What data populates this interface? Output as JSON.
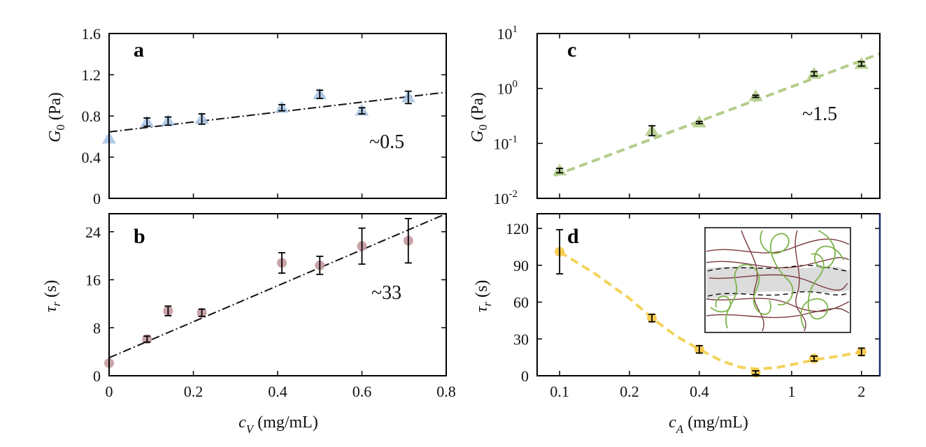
{
  "colors": {
    "a": "#a9c4e4",
    "b": "#c49a9f",
    "c": "#b3cd8a",
    "d": "#f5c842",
    "d_line": "#f3d35a",
    "c_line": "#b3cd8a",
    "fit": "#111111",
    "right_axis": "#1c2a6b",
    "inset_band": "#dcdcdc",
    "inset_red": "#7a3a3e",
    "inset_green": "#7db34a"
  },
  "chart_data": [
    {
      "id": "a",
      "panel_label": "a",
      "type": "scatter",
      "marker": "triangle",
      "xlim": [
        0,
        0.8
      ],
      "ylim": [
        0,
        1.6
      ],
      "yticks": [
        "0",
        "0.4",
        "0.8",
        "1.2",
        "1.6"
      ],
      "ytick_values": [
        0,
        0.4,
        0.8,
        1.2,
        1.6
      ],
      "ylabel_main": "G",
      "ylabel_sub": "0",
      "ylabel_rest": " (Pa)",
      "x": [
        0.0,
        0.09,
        0.14,
        0.22,
        0.41,
        0.5,
        0.6,
        0.71
      ],
      "y": [
        0.58,
        0.74,
        0.75,
        0.77,
        0.88,
        1.01,
        0.85,
        0.98
      ],
      "err": [
        0.0,
        0.04,
        0.04,
        0.05,
        0.03,
        0.04,
        0.03,
        0.06
      ],
      "fit": {
        "x": [
          0,
          0.8
        ],
        "y": [
          0.645,
          1.03
        ]
      },
      "annotation": "~0.5"
    },
    {
      "id": "b",
      "panel_label": "b",
      "type": "scatter",
      "marker": "circle",
      "xlim": [
        0,
        0.8
      ],
      "ylim": [
        0,
        27
      ],
      "xticks": [
        "0",
        "0.2",
        "0.4",
        "0.6",
        "0.8"
      ],
      "xtick_values": [
        0,
        0.2,
        0.4,
        0.6,
        0.8
      ],
      "yticks": [
        "0",
        "8",
        "16",
        "24"
      ],
      "ytick_values": [
        0,
        8,
        16,
        24
      ],
      "ylabel_main": "τ",
      "ylabel_sub": "r",
      "ylabel_rest": " (s)",
      "xlabel_main": "c",
      "xlabel_sub": "V",
      "xlabel_rest": " (mg/mL)",
      "x": [
        0.0,
        0.09,
        0.14,
        0.22,
        0.41,
        0.5,
        0.6,
        0.71
      ],
      "y": [
        2.1,
        6.1,
        10.8,
        10.5,
        18.8,
        18.4,
        21.6,
        22.5
      ],
      "err": [
        0.0,
        0.5,
        0.8,
        0.6,
        1.7,
        1.5,
        3.0,
        3.7
      ],
      "fit": {
        "x": [
          0,
          0.8
        ],
        "y": [
          3.0,
          28.0
        ]
      },
      "annotation": "~33"
    },
    {
      "id": "c",
      "panel_label": "c",
      "type": "scatter",
      "marker": "triangle",
      "xscale": "log",
      "yscale": "log",
      "xlim": [
        0.08,
        2.4
      ],
      "ylim": [
        0.01,
        10
      ],
      "yticks": [
        {
          "base": "10",
          "exp": "1",
          "value": 10
        },
        {
          "base": "10",
          "exp": "0",
          "value": 1
        },
        {
          "base": "10",
          "exp": "-1",
          "value": 0.1
        },
        {
          "base": "10",
          "exp": "-2",
          "value": 0.01
        }
      ],
      "ylabel_main": "G",
      "ylabel_sub": "0",
      "ylabel_rest": " (Pa)",
      "x": [
        0.1,
        0.25,
        0.4,
        0.7,
        1.25,
        2.0
      ],
      "y": [
        0.032,
        0.17,
        0.24,
        0.72,
        1.85,
        2.8
      ],
      "err_log": [
        0.04,
        0.09,
        0.02,
        0.02,
        0.04,
        0.04
      ],
      "fit": {
        "x": [
          0.095,
          2.4
        ],
        "y": [
          0.026,
          4.3
        ]
      },
      "annotation": "~1.5"
    },
    {
      "id": "d",
      "panel_label": "d",
      "type": "scatter",
      "marker": "circle",
      "xscale": "log",
      "xlim": [
        0.08,
        2.4
      ],
      "ylim": [
        0,
        132
      ],
      "xticks": [
        "0.1",
        "0.2",
        "0.4",
        "1",
        "2"
      ],
      "xtick_values": [
        0.1,
        0.2,
        0.4,
        1,
        2
      ],
      "yticks": [
        "0",
        "30",
        "60",
        "90",
        "120"
      ],
      "ytick_values": [
        0,
        30,
        60,
        90,
        120
      ],
      "ylabel_main": "τ",
      "ylabel_sub": "r",
      "ylabel_rest": " (s)",
      "xlabel_main": "c",
      "xlabel_sub": "A",
      "xlabel_rest": " (mg/mL)",
      "x": [
        0.1,
        0.25,
        0.4,
        0.7,
        1.25,
        2.0
      ],
      "y": [
        101,
        47,
        21.5,
        2.5,
        14,
        19.5
      ],
      "err": [
        18,
        3,
        3,
        1.5,
        2,
        3
      ],
      "curve": {
        "x": [
          0.1,
          0.14,
          0.2,
          0.25,
          0.32,
          0.4,
          0.5,
          0.6,
          0.7,
          0.85,
          1.0,
          1.25,
          1.6,
          2.0
        ],
        "y": [
          101,
          84,
          63,
          47,
          32,
          21.5,
          12,
          7,
          5.5,
          6.5,
          9,
          13,
          16,
          19.5
        ]
      }
    }
  ]
}
